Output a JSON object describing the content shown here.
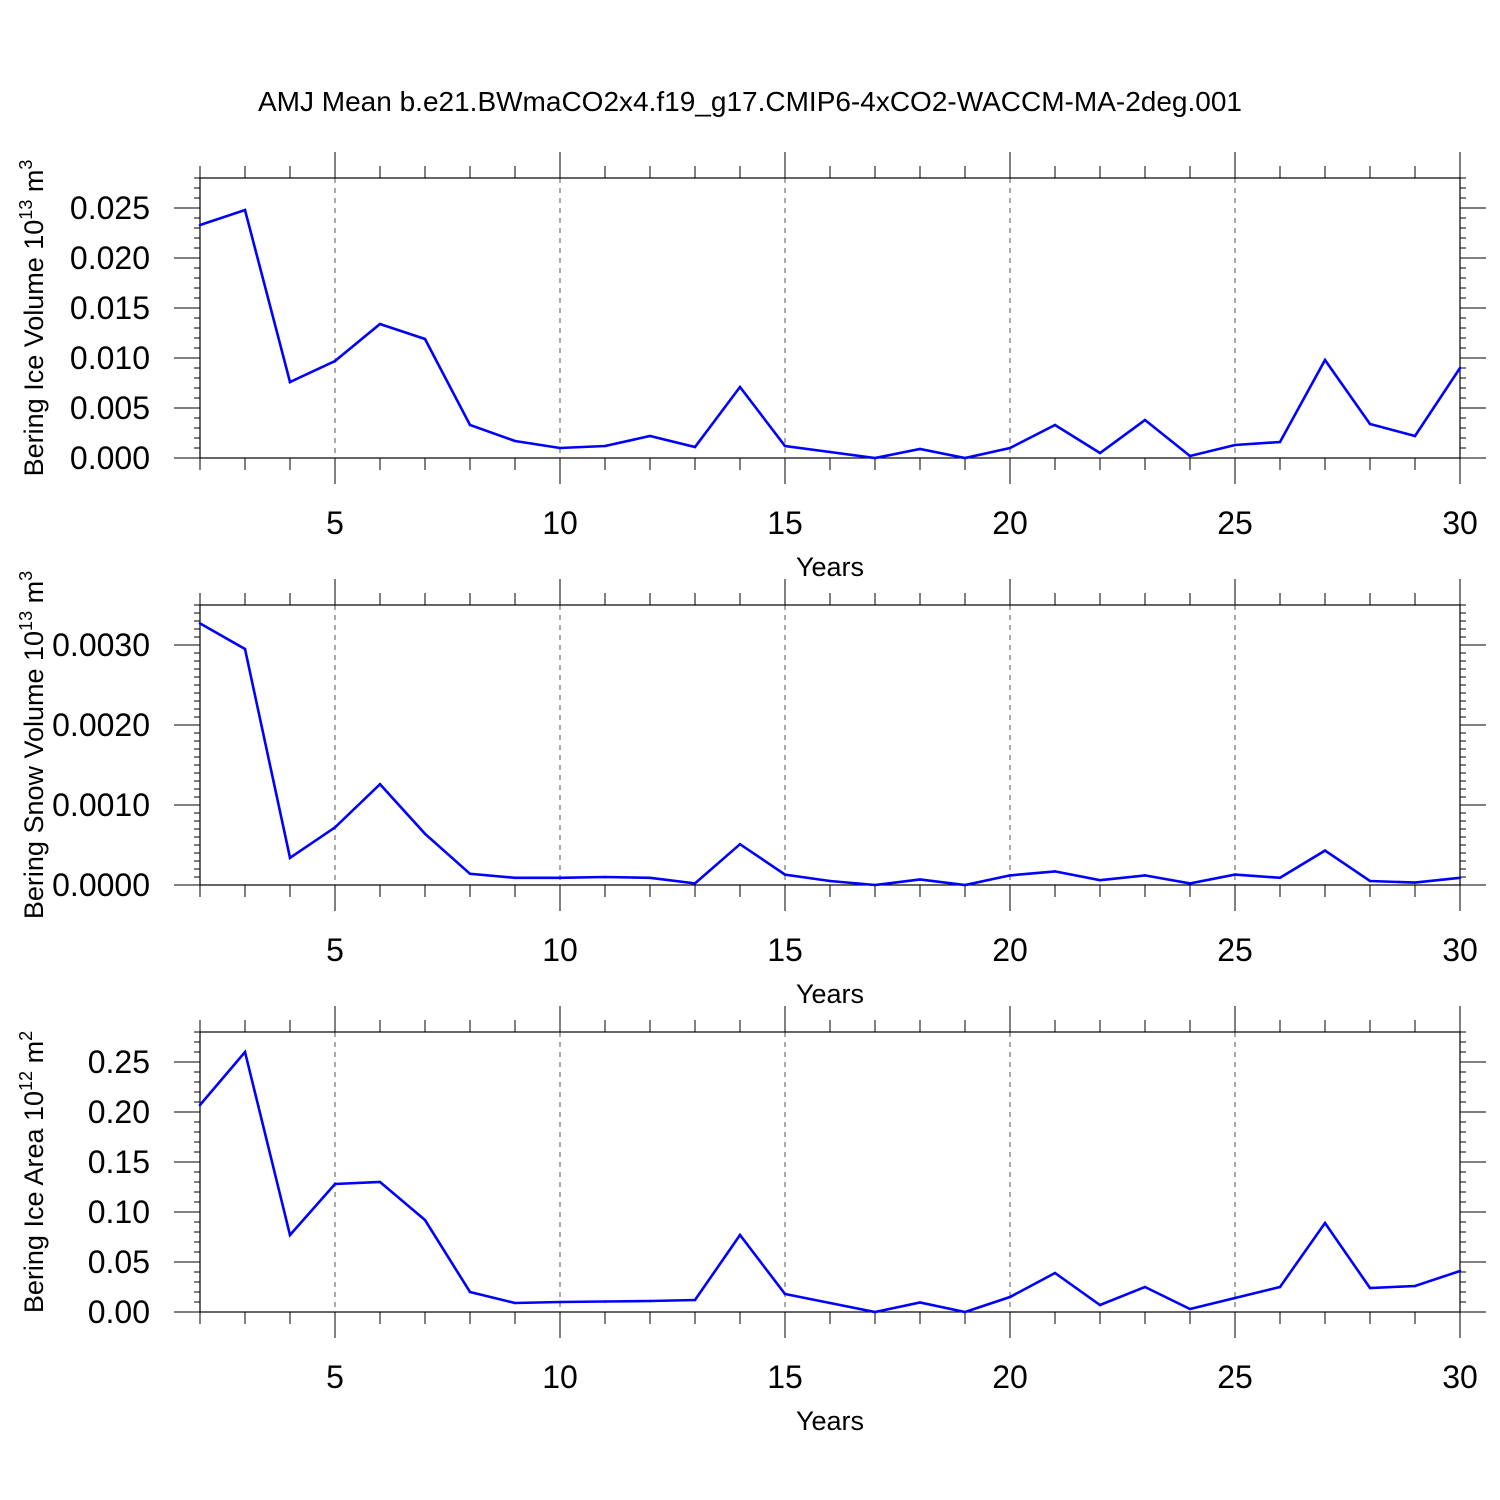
{
  "title": "AMJ Mean b.e21.BWmaCO2x4.f19_g17.CMIP6-4xCO2-WACCM-MA-2deg.001",
  "colors": {
    "line": "#0000ff",
    "axis": "#000000",
    "grid": "#555555"
  },
  "chart_data": [
    {
      "type": "line",
      "title": "",
      "xlabel": "Years",
      "ylabel": "Bering Ice Volume",
      "yunit_base": "10",
      "yunit_exp": "13",
      "yunit_sym": "m",
      "yunit_pow": "3",
      "xlim": [
        2,
        30
      ],
      "ylim": [
        0,
        0.028
      ],
      "xticks": [
        5,
        10,
        15,
        20,
        25,
        30
      ],
      "xtick_labels": [
        "5",
        "10",
        "15",
        "20",
        "25",
        "30"
      ],
      "yticks": [
        0,
        0.005,
        0.01,
        0.015,
        0.02,
        0.025
      ],
      "ytick_labels": [
        "0.000",
        "0.005",
        "0.010",
        "0.015",
        "0.020",
        "0.025"
      ],
      "yminor_step": 0.001,
      "grid": "dashed vertical at major x ticks",
      "series": [
        {
          "name": "Bering Ice Volume",
          "x": [
            2,
            3,
            4,
            5,
            6,
            7,
            8,
            9,
            10,
            11,
            12,
            13,
            14,
            15,
            16,
            17,
            18,
            19,
            20,
            21,
            22,
            23,
            24,
            25,
            26,
            27,
            28,
            29,
            30
          ],
          "values": [
            0.0233,
            0.0248,
            0.0076,
            0.0097,
            0.0134,
            0.0119,
            0.0033,
            0.0017,
            0.001,
            0.0012,
            0.0022,
            0.0011,
            0.0071,
            0.0012,
            0.0006,
            0.0,
            0.0009,
            0.0,
            0.001,
            0.0033,
            0.0005,
            0.0038,
            0.0002,
            0.0013,
            0.0016,
            0.0098,
            0.0034,
            0.0022,
            0.009
          ]
        }
      ]
    },
    {
      "type": "line",
      "title": "",
      "xlabel": "Years",
      "ylabel": "Bering Snow Volume",
      "yunit_base": "10",
      "yunit_exp": "13",
      "yunit_sym": "m",
      "yunit_pow": "3",
      "xlim": [
        2,
        30
      ],
      "ylim": [
        0,
        0.0035
      ],
      "xticks": [
        5,
        10,
        15,
        20,
        25,
        30
      ],
      "xtick_labels": [
        "5",
        "10",
        "15",
        "20",
        "25",
        "30"
      ],
      "yticks": [
        0,
        0.001,
        0.002,
        0.003
      ],
      "ytick_labels": [
        "0.0000",
        "0.0010",
        "0.0020",
        "0.0030"
      ],
      "yminor_step": 0.0001,
      "grid": "dashed vertical at major x ticks",
      "series": [
        {
          "name": "Bering Snow Volume",
          "x": [
            2,
            3,
            4,
            5,
            6,
            7,
            8,
            9,
            10,
            11,
            12,
            13,
            14,
            15,
            16,
            17,
            18,
            19,
            20,
            21,
            22,
            23,
            24,
            25,
            26,
            27,
            28,
            29,
            30
          ],
          "values": [
            0.00327,
            0.00295,
            0.00034,
            0.00072,
            0.00126,
            0.00064,
            0.00014,
            9e-05,
            9e-05,
            0.0001,
            9e-05,
            2e-05,
            0.00051,
            0.00013,
            5e-05,
            0.0,
            7e-05,
            0.0,
            0.00012,
            0.00017,
            6e-05,
            0.00012,
            2e-05,
            0.00013,
            9e-05,
            0.00043,
            5e-05,
            3e-05,
            9e-05
          ]
        }
      ]
    },
    {
      "type": "line",
      "title": "",
      "xlabel": "Years",
      "ylabel": "Bering Ice Area",
      "yunit_base": "10",
      "yunit_exp": "12",
      "yunit_sym": "m",
      "yunit_pow": "2",
      "xlim": [
        2,
        30
      ],
      "ylim": [
        0,
        0.28
      ],
      "xticks": [
        5,
        10,
        15,
        20,
        25,
        30
      ],
      "xtick_labels": [
        "5",
        "10",
        "15",
        "20",
        "25",
        "30"
      ],
      "yticks": [
        0,
        0.05,
        0.1,
        0.15,
        0.2,
        0.25
      ],
      "ytick_labels": [
        "0.00",
        "0.05",
        "0.10",
        "0.15",
        "0.20",
        "0.25"
      ],
      "yminor_step": 0.01,
      "grid": "dashed vertical at major x ticks",
      "series": [
        {
          "name": "Bering Ice Area",
          "x": [
            2,
            3,
            4,
            5,
            6,
            7,
            8,
            9,
            10,
            11,
            12,
            13,
            14,
            15,
            16,
            17,
            18,
            19,
            20,
            21,
            22,
            23,
            24,
            25,
            26,
            27,
            28,
            29,
            30
          ],
          "values": [
            0.207,
            0.26,
            0.077,
            0.128,
            0.13,
            0.092,
            0.02,
            0.009,
            0.01,
            0.0105,
            0.011,
            0.012,
            0.077,
            0.018,
            0.009,
            0.0,
            0.0095,
            0.0,
            0.015,
            0.039,
            0.007,
            0.025,
            0.003,
            0.014,
            0.025,
            0.089,
            0.024,
            0.026,
            0.041
          ]
        }
      ]
    }
  ]
}
